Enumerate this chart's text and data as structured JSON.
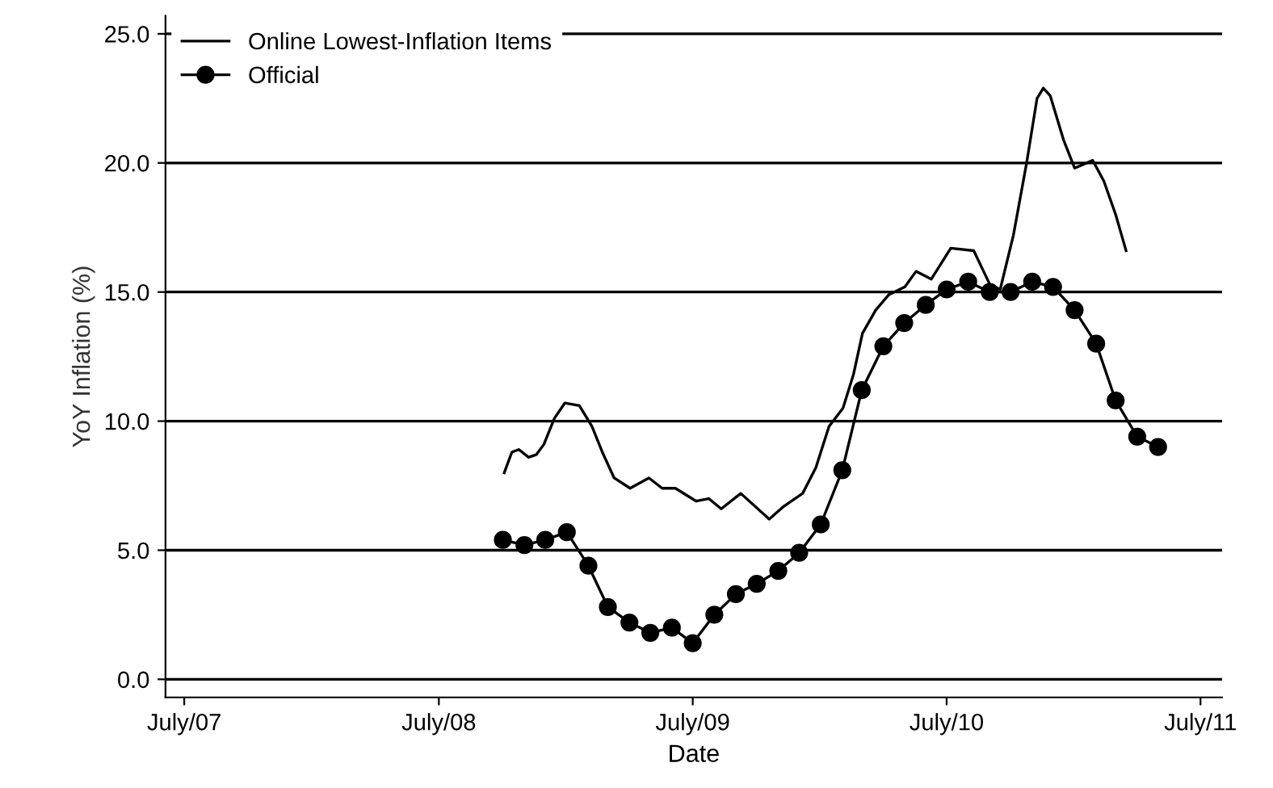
{
  "chart_data": {
    "type": "line",
    "xlabel": "Date",
    "ylabel": "YoY Inflation (%)",
    "xlim": [
      "2007-06-04",
      "2011-08-01"
    ],
    "ylim": [
      -0.7,
      25.7
    ],
    "xticks": [
      {
        "value": "2007-07",
        "label": "July/07"
      },
      {
        "value": "2008-07",
        "label": "July/08"
      },
      {
        "value": "2009-07",
        "label": "July/09"
      },
      {
        "value": "2010-07",
        "label": "July/10"
      },
      {
        "value": "2011-07",
        "label": "July/11"
      }
    ],
    "yticks": [
      {
        "value": 0,
        "label": "0.0"
      },
      {
        "value": 5,
        "label": "5.0"
      },
      {
        "value": 10,
        "label": "10.0"
      },
      {
        "value": 15,
        "label": "15.0"
      },
      {
        "value": 20,
        "label": "20.0"
      },
      {
        "value": 25,
        "label": "25.0"
      }
    ],
    "grid": "y",
    "legend": "top left",
    "series": [
      {
        "name": "Online Lowest-Inflation Items",
        "color": "#000000",
        "marker": "none",
        "x": [
          "2008-10-03",
          "2008-10-14",
          "2008-10-24",
          "2008-11-07",
          "2008-11-18",
          "2008-11-29",
          "2008-12-14",
          "2008-12-29",
          "2009-01-19",
          "2009-02-06",
          "2009-02-21",
          "2009-03-10",
          "2009-04-02",
          "2009-04-29",
          "2009-05-18",
          "2009-06-06",
          "2009-07-06",
          "2009-07-24",
          "2009-08-11",
          "2009-09-08",
          "2009-10-19",
          "2009-11-09",
          "2009-12-06",
          "2009-12-25",
          "2010-01-13",
          "2010-02-02",
          "2010-02-17",
          "2010-03-02",
          "2010-03-21",
          "2010-04-09",
          "2010-05-02",
          "2010-05-18",
          "2010-06-09",
          "2010-07-07",
          "2010-08-09",
          "2010-09-01",
          "2010-09-16",
          "2010-10-05",
          "2010-10-24",
          "2010-11-08",
          "2010-11-17",
          "2010-11-27",
          "2010-12-16",
          "2011-01-01",
          "2011-01-27",
          "2011-02-12",
          "2011-03-01",
          "2011-03-16"
        ],
        "values": [
          8.0,
          8.8,
          8.9,
          8.6,
          8.7,
          9.1,
          10.1,
          10.7,
          10.6,
          9.8,
          8.8,
          7.8,
          7.4,
          7.8,
          7.4,
          7.4,
          6.9,
          7.0,
          6.6,
          7.2,
          6.2,
          6.7,
          7.2,
          8.2,
          9.8,
          10.5,
          11.8,
          13.4,
          14.3,
          14.9,
          15.2,
          15.8,
          15.5,
          16.7,
          16.6,
          15.3,
          15.1,
          17.2,
          20.0,
          22.5,
          22.9,
          22.6,
          20.9,
          19.8,
          20.1,
          19.3,
          18.0,
          16.6
        ]
      },
      {
        "name": "Official",
        "color": "#000000",
        "marker": "circle",
        "x": [
          "2008-10",
          "2008-11",
          "2008-12",
          "2009-01",
          "2009-02",
          "2009-03",
          "2009-04",
          "2009-05",
          "2009-06",
          "2009-07",
          "2009-08",
          "2009-09",
          "2009-10",
          "2009-11",
          "2009-12",
          "2010-01",
          "2010-02",
          "2010-03",
          "2010-04",
          "2010-05",
          "2010-06",
          "2010-07",
          "2010-08",
          "2010-09",
          "2010-10",
          "2010-11",
          "2010-12",
          "2011-01",
          "2011-02",
          "2011-03",
          "2011-04",
          "2011-05"
        ],
        "values": [
          5.4,
          5.2,
          5.4,
          5.7,
          4.4,
          2.8,
          2.2,
          1.8,
          2.0,
          1.4,
          2.5,
          3.3,
          3.7,
          4.2,
          4.9,
          6.0,
          8.1,
          11.2,
          12.9,
          13.8,
          14.5,
          15.1,
          15.4,
          15.0,
          15.0,
          15.4,
          15.2,
          14.3,
          13.0,
          10.8,
          9.4,
          9.0
        ]
      }
    ]
  }
}
